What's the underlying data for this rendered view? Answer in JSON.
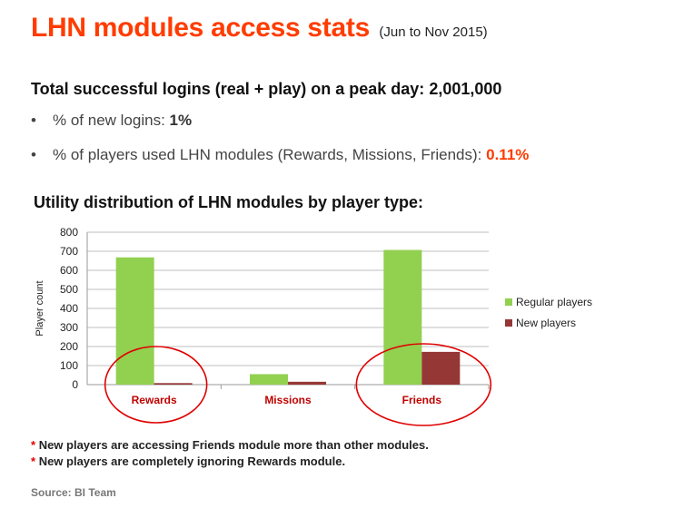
{
  "title": {
    "main": "LHN modules access stats",
    "period": "(Jun to Nov 2015)"
  },
  "headline": {
    "label": "Total successful logins (real + play) on a peak day:",
    "value": "2,001,000"
  },
  "bullets": [
    {
      "marker": "•",
      "label": "% of new logins:",
      "value": "1%"
    },
    {
      "marker": "•",
      "label": "% of players used LHN modules (Rewards, Missions, Friends):",
      "value": "0.11%"
    }
  ],
  "chart_heading": "Utility distribution of LHN modules by player type:",
  "chart_data": {
    "type": "bar",
    "categories": [
      "Rewards",
      "Missions",
      "Friends"
    ],
    "series": [
      {
        "name": "Regular players",
        "values": [
          668,
          55,
          707
        ],
        "color": "#92d050"
      },
      {
        "name": "New players",
        "values": [
          8,
          15,
          172
        ],
        "color": "#953735"
      }
    ],
    "xlabel": "",
    "ylabel": "Player count",
    "ylim": [
      0,
      800
    ],
    "yticks": [
      0,
      100,
      200,
      300,
      400,
      500,
      600,
      700,
      800
    ],
    "grid": true,
    "legend": "right",
    "category_label_color": "#c00000",
    "highlighted_categories": [
      "Rewards",
      "Friends"
    ],
    "highlight_color": "#e00000"
  },
  "notes": [
    {
      "marker": "*",
      "text": "New players are accessing Friends module more than other modules."
    },
    {
      "marker": "*",
      "text": "New players are completely ignoring Rewards module."
    }
  ],
  "source": "Source:  BI Team"
}
